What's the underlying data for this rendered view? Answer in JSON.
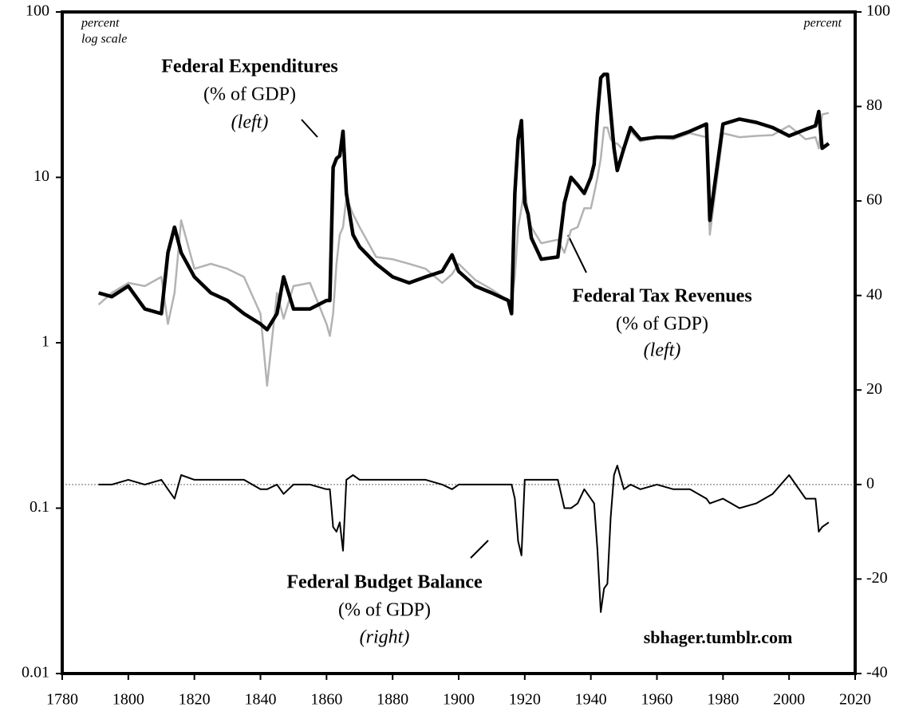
{
  "chart_data": {
    "type": "line",
    "x": [
      1791,
      1795,
      1800,
      1805,
      1810,
      1812,
      1814,
      1816,
      1820,
      1825,
      1830,
      1835,
      1840,
      1842,
      1845,
      1847,
      1850,
      1855,
      1860,
      1861,
      1862,
      1863,
      1864,
      1865,
      1866,
      1868,
      1870,
      1875,
      1880,
      1885,
      1890,
      1895,
      1898,
      1900,
      1905,
      1910,
      1915,
      1916,
      1917,
      1918,
      1919,
      1920,
      1921,
      1922,
      1925,
      1930,
      1932,
      1934,
      1936,
      1938,
      1940,
      1941,
      1942,
      1943,
      1944,
      1945,
      1946,
      1947,
      1948,
      1950,
      1952,
      1955,
      1960,
      1965,
      1970,
      1975,
      1976,
      1980,
      1985,
      1990,
      1995,
      2000,
      2005,
      2008,
      2009,
      2010,
      2012
    ],
    "series": [
      {
        "name": "Federal Tax Revenues",
        "color": "#b3b3b3",
        "width": 2.5,
        "values": [
          1.7,
          2.0,
          2.3,
          2.2,
          2.5,
          1.3,
          2.0,
          5.5,
          2.8,
          3.0,
          2.8,
          2.5,
          1.5,
          0.55,
          2.0,
          1.4,
          2.2,
          2.3,
          1.3,
          1.1,
          1.5,
          3,
          4.5,
          5.0,
          7.5,
          6,
          5,
          3.3,
          3.2,
          3.0,
          2.8,
          2.3,
          2.6,
          3.0,
          2.4,
          2.1,
          1.8,
          1.8,
          2.5,
          5,
          6.5,
          9,
          6,
          5,
          4,
          4.2,
          3.5,
          4.8,
          5.0,
          6.5,
          6.5,
          8,
          10,
          13,
          20,
          20,
          17,
          16,
          16,
          14.5,
          19,
          16.5,
          17.5,
          17,
          18.5,
          17.5,
          4.5,
          18.5,
          17.5,
          17.8,
          18,
          20.5,
          17,
          17.5,
          15,
          24,
          24.5
        ]
      },
      {
        "name": "Federal Expenditures",
        "color": "#000000",
        "width": 4.5,
        "values": [
          2.0,
          1.9,
          2.2,
          1.6,
          1.5,
          3.5,
          5.0,
          3.5,
          2.5,
          2.0,
          1.8,
          1.5,
          1.3,
          1.2,
          1.5,
          2.5,
          1.6,
          1.6,
          1.8,
          1.8,
          11.5,
          13,
          13.5,
          19,
          8,
          4.5,
          3.8,
          3.0,
          2.5,
          2.3,
          2.5,
          2.7,
          3.4,
          2.7,
          2.2,
          2.0,
          1.8,
          1.5,
          8,
          17,
          22,
          7,
          6,
          4.3,
          3.2,
          3.3,
          7,
          10,
          9,
          8,
          10,
          12,
          24,
          40,
          42,
          42,
          25,
          15,
          11,
          15,
          20,
          17,
          17.5,
          17.5,
          19,
          21,
          5.5,
          21,
          22.5,
          21.5,
          20,
          17.8,
          19.5,
          20.5,
          25,
          15,
          16
        ]
      },
      {
        "name": "Federal Budget Balance",
        "color": "#000000",
        "width": 2,
        "axis": "y2",
        "values": [
          0,
          0,
          1,
          0,
          1,
          -1,
          -3,
          2,
          1,
          1,
          1,
          1,
          -1,
          -1,
          0,
          -2,
          0,
          0,
          -1,
          -1,
          -9,
          -10,
          -8,
          -14,
          1,
          2,
          1,
          1,
          1,
          1,
          1,
          0,
          -1,
          0,
          0,
          0,
          0,
          0,
          -3,
          -12,
          -15,
          1,
          1,
          1,
          1,
          1,
          -5,
          -5,
          -4,
          -1,
          -3,
          -4,
          -14,
          -27,
          -22,
          -21,
          -7,
          2,
          4,
          -1,
          0,
          -1,
          0,
          -1,
          -1,
          -3,
          -4,
          -3,
          -5,
          -4,
          -2,
          2,
          -3,
          -3,
          -10,
          -9,
          -8
        ]
      }
    ],
    "xlim": [
      1780,
      2020
    ],
    "xticks": [
      1780,
      1800,
      1820,
      1840,
      1860,
      1880,
      1900,
      1920,
      1940,
      1960,
      1980,
      2000,
      2020
    ],
    "ylim": [
      0.01,
      100
    ],
    "yticks": [
      0.01,
      0.1,
      1,
      10,
      100
    ],
    "log_scale": true,
    "y2lim": [
      -40,
      100
    ],
    "y2ticks": [
      -40,
      -20,
      0,
      20,
      40,
      60,
      80,
      100
    ],
    "zero_line": 0,
    "y_axis_note": [
      "percent",
      "log scale"
    ],
    "y2_axis_note": "percent",
    "annotations": [
      {
        "text": "Federal Expenditures",
        "style": "bold"
      },
      {
        "text": "(% of GDP)",
        "style": "normal"
      },
      {
        "text": "(left)",
        "style": "italic"
      },
      {
        "text": "Federal Tax Revenues",
        "style": "bold"
      },
      {
        "text": "(% of GDP)",
        "style": "normal"
      },
      {
        "text": "(left)",
        "style": "italic"
      },
      {
        "text": "Federal Budget Balance",
        "style": "bold"
      },
      {
        "text": "(% of GDP)",
        "style": "normal"
      },
      {
        "text": "(right)",
        "style": "italic"
      }
    ],
    "source": "sbhager.tumblr.com"
  }
}
